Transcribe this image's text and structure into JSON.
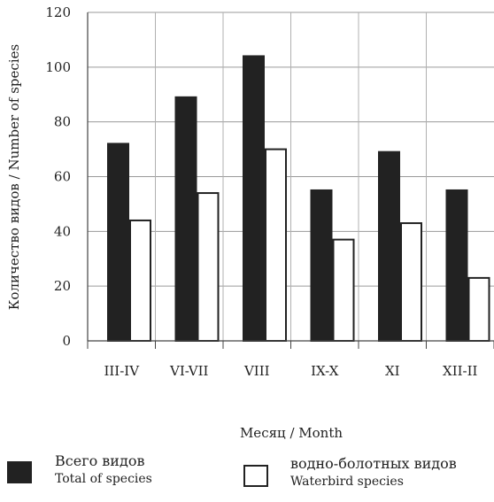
{
  "chart_data": {
    "type": "bar",
    "categories": [
      "III-IV",
      "VI-VII",
      "VIII",
      "IX-X",
      "XI",
      "XII-II"
    ],
    "series": [
      {
        "name": "Всего видов / Total of species",
        "values": [
          72,
          89,
          104,
          55,
          69,
          55
        ],
        "color": "#222222"
      },
      {
        "name": "водно-болотных видов / Waterbird species",
        "values": [
          44,
          54,
          70,
          37,
          43,
          23
        ],
        "color": "#ffffff"
      }
    ],
    "xlabel": "Месяц / Month",
    "ylabel": "Количество видов / Number of species",
    "ylim": [
      0,
      120
    ],
    "yticks": [
      0,
      20,
      40,
      60,
      80,
      100,
      120
    ],
    "grid": true,
    "legend_position": "bottom"
  },
  "legend": {
    "total_ru": "Всего видов",
    "total_en": "Total of species",
    "water_ru": "водно-болотных видов",
    "water_en": "Waterbird species"
  }
}
